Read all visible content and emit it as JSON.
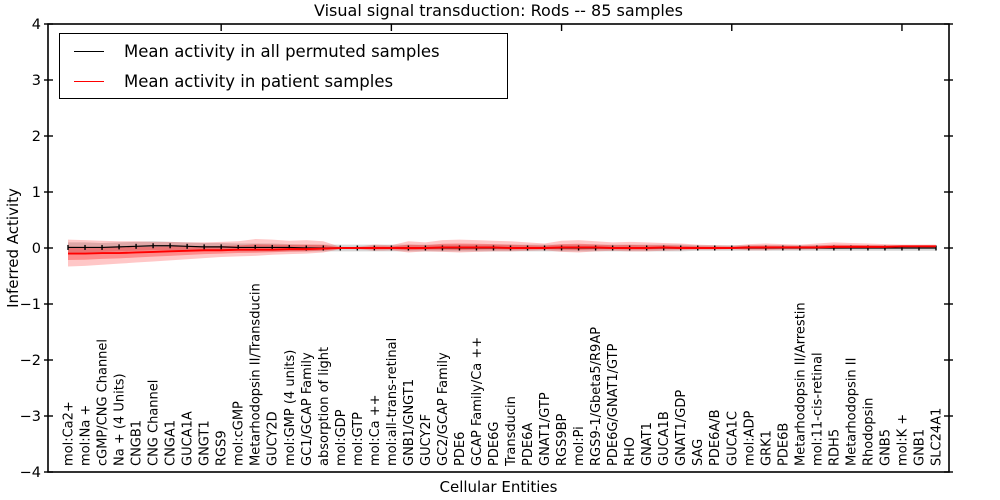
{
  "chart_data": {
    "type": "line",
    "title": "Visual signal transduction: Rods -- 85 samples",
    "xlabel": "Cellular Entities",
    "ylabel": "Inferred Activity",
    "ylim": [
      -4,
      4
    ],
    "ytick_values": [
      4,
      3,
      2,
      1,
      0,
      -1,
      -2,
      -3,
      -4
    ],
    "ytick_labels": [
      "4",
      "3",
      "2",
      "1",
      "0",
      "−1",
      "−2",
      "−3",
      "−4"
    ],
    "top_tick_categories": [
      9,
      19,
      29,
      39,
      49
    ],
    "legend_position": "upper left",
    "grid": false,
    "categories": [
      "mol:Ca2+",
      "mol:Na +",
      "cGMP/CNG Channel",
      "Na + (4 Units)",
      "CNGB1",
      "CNG Channel",
      "CNGA1",
      "GUCA1A",
      "GNGT1",
      "RGS9",
      "mol:cGMP",
      "Metarhodopsin II/Transducin",
      "GUCY2D",
      "mol:GMP (4 units)",
      "GC1/GCAP Family",
      "absorption of light",
      "mol:GDP",
      "mol:GTP",
      "mol:Ca ++",
      "mol:all-trans-retinal",
      "GNB1/GNGT1",
      "GUCY2F",
      "GC2/GCAP Family",
      "PDE6",
      "GCAP Family/Ca ++",
      "PDE6G",
      "Transducin",
      "PDE6A",
      "GNAT1/GTP",
      "RGS9BP",
      "mol:Pi",
      "RGS9-1/Gbeta5/R9AP",
      "PDE6G/GNAT1/GTP",
      "RHO",
      "GNAT1",
      "GUCA1B",
      "GNAT1/GDP",
      "SAG",
      "PDE6A/B",
      "GUCA1C",
      "mol:ADP",
      "GRK1",
      "PDE6B",
      "Metarhodopsin II/Arrestin",
      "mol:11-cis-retinal",
      "RDH5",
      "Metarhodopsin II",
      "Rhodopsin",
      "GNB5",
      "mol:K +",
      "GNB1",
      "SLC24A1"
    ],
    "series": [
      {
        "name": "Mean activity in all permuted samples",
        "color": "#000000",
        "marker": "|",
        "band_color": "#000000",
        "band_opacity": 0.16,
        "values": [
          0.01,
          0.01,
          0.01,
          0.02,
          0.03,
          0.04,
          0.04,
          0.03,
          0.02,
          0.02,
          0.01,
          0.01,
          0.01,
          0.01,
          0.0,
          0.0,
          0.0,
          0.0,
          0.0,
          0.0,
          0.0,
          0.0,
          0.0,
          0.0,
          0.0,
          0.0,
          0.0,
          0.0,
          0.0,
          0.0,
          0.0,
          0.0,
          0.0,
          0.0,
          0.0,
          0.0,
          0.0,
          0.0,
          0.0,
          0.0,
          0.0,
          0.0,
          0.0,
          0.0,
          0.0,
          0.0,
          0.0,
          0.0,
          0.0,
          0.0,
          0.0,
          0.0
        ],
        "band_hi": [
          0.1,
          0.1,
          0.09,
          0.1,
          0.11,
          0.12,
          0.11,
          0.1,
          0.09,
          0.09,
          0.08,
          0.08,
          0.08,
          0.07,
          0.06,
          0.06,
          0.06,
          0.06,
          0.06,
          0.06,
          0.06,
          0.06,
          0.06,
          0.06,
          0.06,
          0.06,
          0.06,
          0.06,
          0.06,
          0.06,
          0.06,
          0.06,
          0.06,
          0.06,
          0.06,
          0.06,
          0.06,
          0.05,
          0.05,
          0.05,
          0.05,
          0.05,
          0.05,
          0.05,
          0.05,
          0.05,
          0.05,
          0.05,
          0.05,
          0.05,
          0.05,
          0.05
        ],
        "band_lo": [
          -0.08,
          -0.08,
          -0.07,
          -0.06,
          -0.05,
          -0.04,
          -0.04,
          -0.05,
          -0.05,
          -0.05,
          -0.06,
          -0.06,
          -0.06,
          -0.06,
          -0.06,
          -0.06,
          -0.06,
          -0.06,
          -0.06,
          -0.06,
          -0.06,
          -0.06,
          -0.06,
          -0.06,
          -0.06,
          -0.06,
          -0.06,
          -0.06,
          -0.06,
          -0.06,
          -0.06,
          -0.06,
          -0.06,
          -0.06,
          -0.06,
          -0.06,
          -0.06,
          -0.05,
          -0.05,
          -0.05,
          -0.05,
          -0.05,
          -0.05,
          -0.05,
          -0.05,
          -0.05,
          -0.05,
          -0.05,
          -0.05,
          -0.05,
          -0.05,
          -0.05
        ]
      },
      {
        "name": "Mean activity in patient samples",
        "color": "#ff0000",
        "marker": "none",
        "band_color": "#ff0000",
        "band_opacity": 0.22,
        "inner_band_opacity": 0.3,
        "values": [
          -0.1,
          -0.1,
          -0.09,
          -0.09,
          -0.08,
          -0.07,
          -0.06,
          -0.05,
          -0.04,
          -0.04,
          -0.03,
          -0.03,
          -0.03,
          -0.02,
          -0.02,
          -0.01,
          0.0,
          0.0,
          0.0,
          0.0,
          0.0,
          0.0,
          0.01,
          0.01,
          0.01,
          0.01,
          0.0,
          0.0,
          0.0,
          0.01,
          0.01,
          0.01,
          0.0,
          0.0,
          0.0,
          0.01,
          0.0,
          0.0,
          0.0,
          0.0,
          0.01,
          0.01,
          0.01,
          0.01,
          0.01,
          0.02,
          0.02,
          0.02,
          0.02,
          0.03,
          0.03,
          0.03
        ],
        "band_hi": [
          0.15,
          0.14,
          0.13,
          0.12,
          0.12,
          0.11,
          0.11,
          0.1,
          0.1,
          0.11,
          0.12,
          0.16,
          0.15,
          0.13,
          0.14,
          0.12,
          0.02,
          0.02,
          0.06,
          0.05,
          0.12,
          0.1,
          0.14,
          0.15,
          0.14,
          0.13,
          0.12,
          0.1,
          0.08,
          0.13,
          0.14,
          0.12,
          0.1,
          0.11,
          0.1,
          0.09,
          0.08,
          0.06,
          0.05,
          0.04,
          0.07,
          0.08,
          0.07,
          0.06,
          0.08,
          0.1,
          0.09,
          0.08,
          0.07,
          0.06,
          0.06,
          0.06
        ],
        "band_lo": [
          -0.33,
          -0.32,
          -0.3,
          -0.28,
          -0.26,
          -0.24,
          -0.22,
          -0.2,
          -0.18,
          -0.16,
          -0.15,
          -0.14,
          -0.12,
          -0.11,
          -0.1,
          -0.08,
          -0.02,
          -0.02,
          -0.05,
          -0.04,
          -0.08,
          -0.06,
          -0.07,
          -0.08,
          -0.07,
          -0.06,
          -0.06,
          -0.05,
          -0.04,
          -0.07,
          -0.08,
          -0.06,
          -0.05,
          -0.06,
          -0.06,
          -0.05,
          -0.04,
          -0.03,
          -0.03,
          -0.02,
          -0.04,
          -0.04,
          -0.03,
          -0.03,
          -0.02,
          -0.02,
          -0.01,
          -0.01,
          0.0,
          0.0,
          0.01,
          0.01
        ]
      }
    ]
  }
}
